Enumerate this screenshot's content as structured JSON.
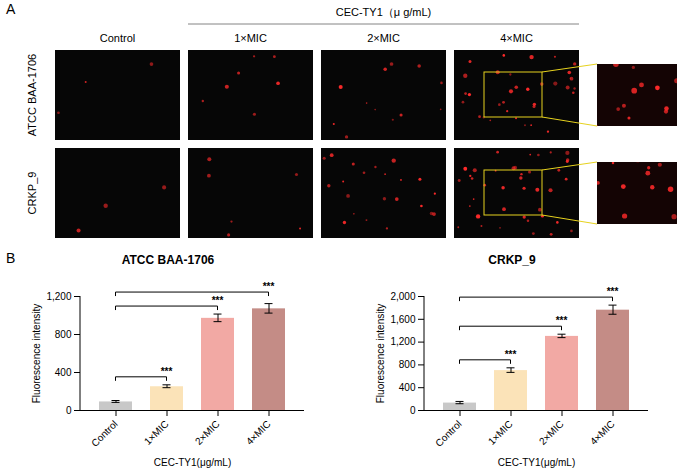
{
  "panel_a": {
    "letter": "A",
    "header": "CEC-TY1（μ g/mL)",
    "columns": [
      "Control",
      "1×MIC",
      "2×MIC",
      "4×MIC"
    ],
    "rows": [
      "ATCC BAA-1706",
      "CRKP_9"
    ]
  },
  "panel_b": {
    "letter": "B"
  },
  "chart_data": [
    {
      "type": "bar",
      "title": "ATCC BAA-1706",
      "categories": [
        "Control",
        "1×MIC",
        "2×MIC",
        "4×MIC"
      ],
      "values": [
        90,
        250,
        970,
        1070
      ],
      "errors": [
        10,
        15,
        40,
        50
      ],
      "colors": [
        "#c8c8c8",
        "#fbe3b8",
        "#f2a9a4",
        "#c48c86"
      ],
      "xlabel": "CEC-TY1(μg/mL)",
      "ylabel": "Fluorescence intensity",
      "ylim": [
        0,
        1200
      ],
      "yticks": [
        0,
        400,
        800,
        1200
      ],
      "significance": [
        {
          "from": "Control",
          "to": "1×MIC",
          "label": "***"
        },
        {
          "from": "Control",
          "to": "2×MIC",
          "label": "***"
        },
        {
          "from": "Control",
          "to": "4×MIC",
          "label": "***"
        }
      ]
    },
    {
      "type": "bar",
      "title": "CRKP_9",
      "categories": [
        "Control",
        "1×MIC",
        "2×MIC",
        "4×MIC"
      ],
      "values": [
        130,
        700,
        1300,
        1760
      ],
      "errors": [
        20,
        40,
        30,
        80
      ],
      "colors": [
        "#c8c8c8",
        "#fbe3b8",
        "#f2a9a4",
        "#c48c86"
      ],
      "xlabel": "CEC-TY1(μg/mL)",
      "ylabel": "Fluorescence intensity",
      "ylim": [
        0,
        2000
      ],
      "yticks": [
        0,
        400,
        800,
        1200,
        1600,
        2000
      ],
      "significance": [
        {
          "from": "Control",
          "to": "1×MIC",
          "label": "***"
        },
        {
          "from": "Control",
          "to": "2×MIC",
          "label": "***"
        },
        {
          "from": "Control",
          "to": "4×MIC",
          "label": "***"
        }
      ]
    }
  ]
}
